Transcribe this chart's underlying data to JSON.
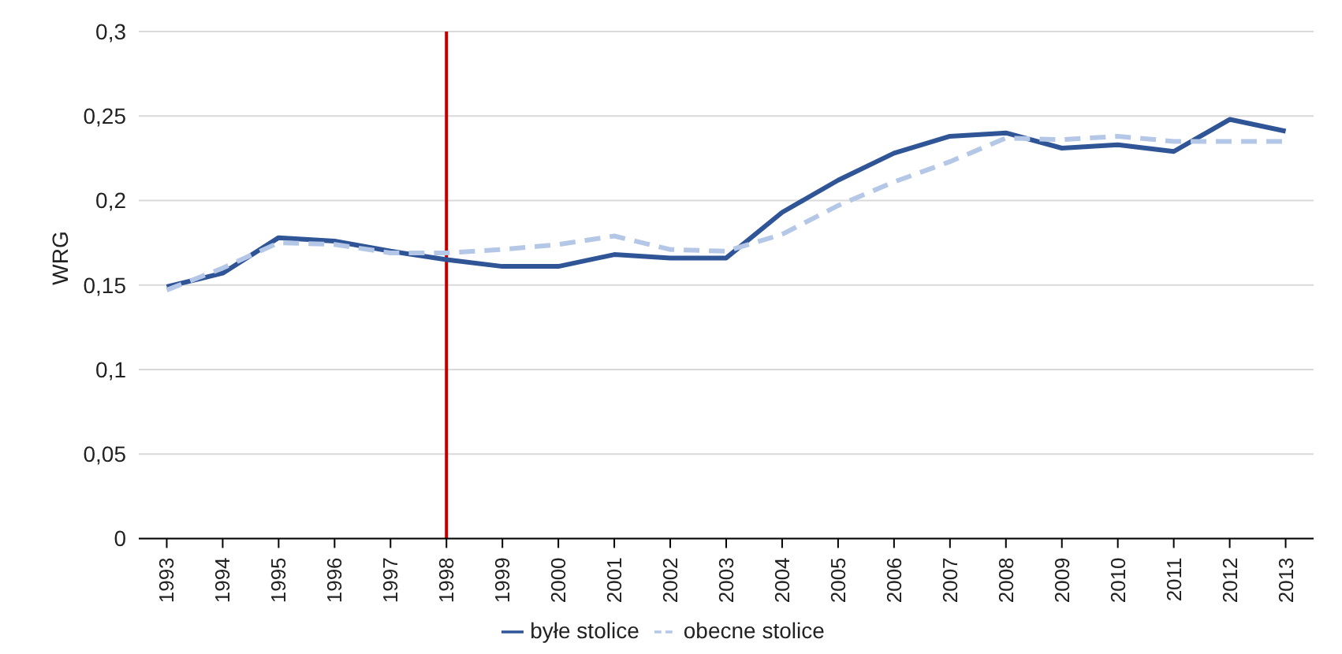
{
  "chart_data": {
    "type": "line",
    "ylabel": "WRG",
    "categories": [
      "1993",
      "1994",
      "1995",
      "1996",
      "1997",
      "1998",
      "1999",
      "2000",
      "2001",
      "2002",
      "2003",
      "2004",
      "2005",
      "2006",
      "2007",
      "2008",
      "2009",
      "2010",
      "2011",
      "2012",
      "2013"
    ],
    "series": [
      {
        "name": "byłe stolice",
        "color": "#2f5597",
        "line_style": "solid",
        "values": [
          0.149,
          0.157,
          0.178,
          0.176,
          0.17,
          0.165,
          0.161,
          0.161,
          0.168,
          0.166,
          0.166,
          0.193,
          0.212,
          0.228,
          0.238,
          0.24,
          0.231,
          0.233,
          0.229,
          0.248,
          0.241
        ]
      },
      {
        "name": "obecne stolice",
        "color": "#b4c7e7",
        "line_style": "dashed",
        "values": [
          0.147,
          0.16,
          0.175,
          0.174,
          0.169,
          0.169,
          0.171,
          0.174,
          0.179,
          0.171,
          0.17,
          0.18,
          0.197,
          0.211,
          0.223,
          0.237,
          0.236,
          0.238,
          0.235,
          0.235,
          0.235
        ]
      }
    ],
    "ylim": [
      0,
      0.3
    ],
    "yticks": [
      {
        "value": 0,
        "label": "0"
      },
      {
        "value": 0.05,
        "label": "0,05"
      },
      {
        "value": 0.1,
        "label": "0,1"
      },
      {
        "value": 0.15,
        "label": "0,15"
      },
      {
        "value": 0.2,
        "label": "0,2"
      },
      {
        "value": 0.25,
        "label": "0,25"
      },
      {
        "value": 0.3,
        "label": "0,3"
      }
    ],
    "grid": "y",
    "legend": "bottom",
    "marker": "none",
    "ref_lines": [
      {
        "axis": "x",
        "value": "1998",
        "color": "#c00000"
      }
    ]
  }
}
